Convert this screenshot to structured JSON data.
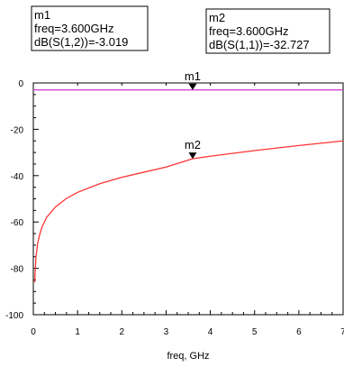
{
  "chart_data": {
    "type": "line",
    "xlabel": "freq, GHz",
    "ylabel": "",
    "xlim": [
      0,
      7
    ],
    "ylim": [
      -100,
      0
    ],
    "x_ticks": [
      "0",
      "1",
      "2",
      "3",
      "4",
      "5",
      "6",
      "7"
    ],
    "y_ticks": [
      "0",
      "-20",
      "-40",
      "-60",
      "-80",
      "-100"
    ],
    "series": [
      {
        "color": "#cc33cc",
        "x": [
          0.0,
          7.0
        ],
        "y": [
          -3.02,
          -3.02
        ]
      },
      {
        "color": "#ff3333",
        "x": [
          0.03,
          0.06,
          0.1,
          0.15,
          0.2,
          0.3,
          0.5,
          0.75,
          1.0,
          1.5,
          2.0,
          2.5,
          3.0,
          3.6,
          4.0,
          5.0,
          6.0,
          7.0
        ],
        "y": [
          -86.0,
          -75.0,
          -69.0,
          -65.0,
          -62.0,
          -58.0,
          -53.5,
          -49.8,
          -47.2,
          -43.5,
          -40.7,
          -38.5,
          -36.3,
          -32.7,
          -31.6,
          -29.2,
          -27.0,
          -25.0
        ]
      }
    ],
    "markers": [
      {
        "name": "m1",
        "x": 3.6,
        "y": -3.019,
        "box_lines": [
          "m1",
          "freq=3.600GHz",
          "dB(S(1,2))=-3.019"
        ]
      },
      {
        "name": "m2",
        "x": 3.6,
        "y": -32.727,
        "box_lines": [
          "m2",
          "freq=3.600GHz",
          "dB(S(1,1))=-32.727"
        ]
      }
    ]
  }
}
